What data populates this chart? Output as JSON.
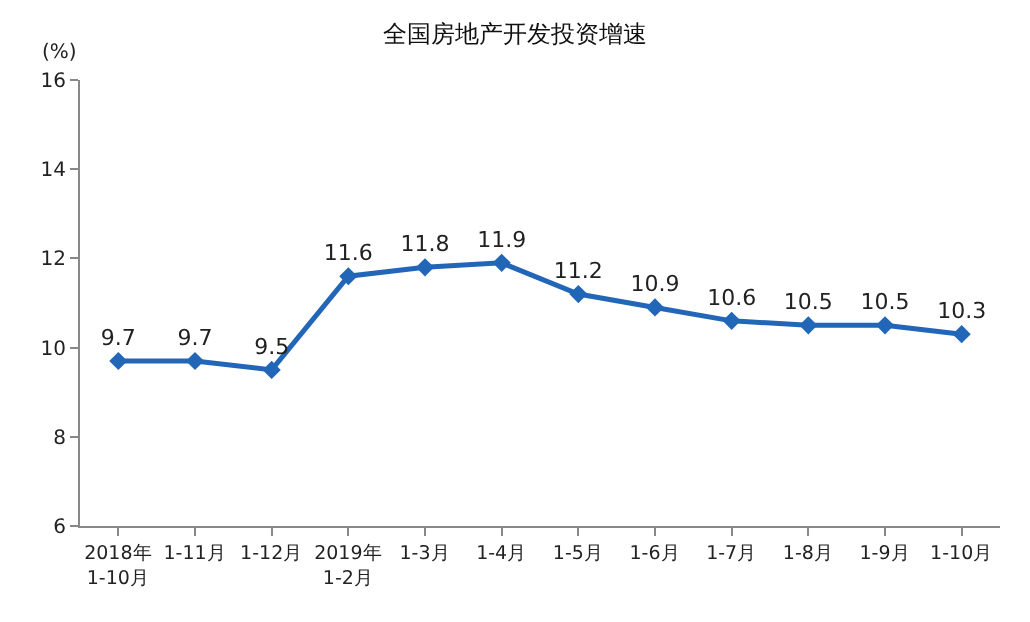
{
  "chart_data": {
    "type": "line",
    "title": "全国房地产开发投资增速",
    "ylabel": "(%)",
    "categories": [
      "2018年\n1-10月",
      "1-11月",
      "1-12月",
      "2019年\n1-2月",
      "1-3月",
      "1-4月",
      "1-5月",
      "1-6月",
      "1-7月",
      "1-8月",
      "1-9月",
      "1-10月"
    ],
    "series": [
      {
        "color": "#2266b8",
        "values": [
          9.7,
          9.7,
          9.5,
          11.6,
          11.8,
          11.9,
          11.2,
          10.9,
          10.6,
          10.5,
          10.5,
          10.3
        ]
      }
    ],
    "ylim": [
      6,
      16
    ],
    "yticks": [
      6,
      8,
      10,
      12,
      14,
      16
    ],
    "marker": "diamond",
    "line_style": "solid",
    "data_labels": true
  }
}
